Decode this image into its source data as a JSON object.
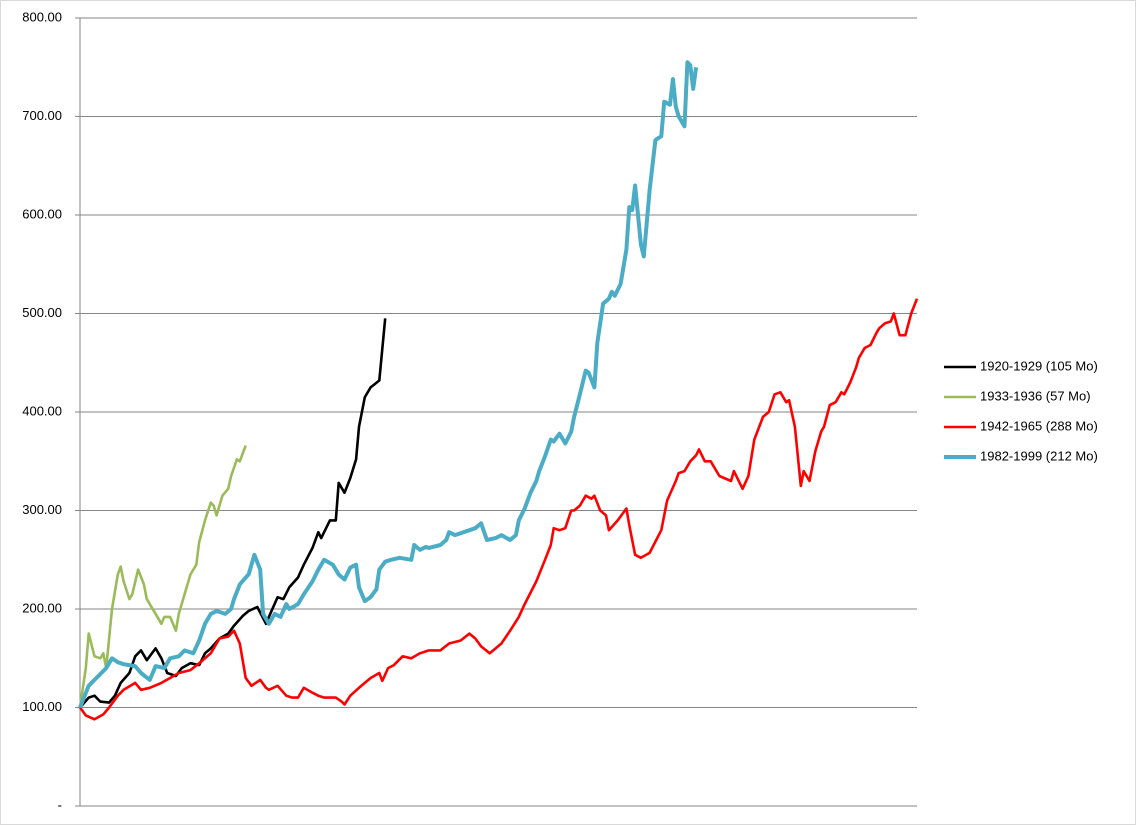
{
  "chart_data": {
    "type": "line",
    "xlim": [
      0,
      288
    ],
    "ylim": [
      0,
      800
    ],
    "yticks": [
      {
        "value": 0,
        "label": "-"
      },
      {
        "value": 100,
        "label": "100.00"
      },
      {
        "value": 200,
        "label": "200.00"
      },
      {
        "value": 300,
        "label": "300.00"
      },
      {
        "value": 400,
        "label": "400.00"
      },
      {
        "value": 500,
        "label": "500.00"
      },
      {
        "value": 600,
        "label": "600.00"
      },
      {
        "value": 700,
        "label": "700.00"
      },
      {
        "value": 800,
        "label": "800.00"
      }
    ],
    "grid": true,
    "legend": "right",
    "series": [
      {
        "name": "1920-1929 (105 Mo)",
        "color": "#000000",
        "x": [
          0,
          3,
          5,
          7,
          10,
          12,
          14,
          17,
          19,
          21,
          23,
          26,
          28,
          30,
          33,
          35,
          38,
          41,
          43,
          45,
          48,
          51,
          53,
          56,
          58,
          61,
          64,
          65,
          68,
          70,
          72,
          75,
          77,
          80,
          82,
          83,
          86,
          88,
          89,
          91,
          93,
          95,
          96,
          98,
          100,
          103,
          105
        ],
        "values": [
          100,
          110,
          112,
          106,
          105,
          112,
          125,
          135,
          152,
          158,
          148,
          160,
          150,
          135,
          132,
          140,
          145,
          143,
          155,
          160,
          170,
          175,
          183,
          193,
          198,
          202,
          185,
          192,
          212,
          210,
          222,
          232,
          245,
          262,
          278,
          272,
          290,
          290,
          328,
          318,
          333,
          352,
          385,
          415,
          425,
          432,
          495
        ]
      },
      {
        "name": "1933-1936 (57 Mo)",
        "color": "#9bbb59",
        "x": [
          0,
          2,
          3,
          5,
          7,
          8,
          9,
          11,
          13,
          14,
          15,
          17,
          18,
          20,
          22,
          23,
          26,
          28,
          29,
          31,
          33,
          34,
          36,
          38,
          40,
          41,
          43,
          45,
          46,
          47,
          49,
          51,
          52,
          54,
          55,
          57
        ],
        "values": [
          100,
          140,
          175,
          152,
          150,
          155,
          140,
          200,
          235,
          243,
          228,
          210,
          215,
          240,
          225,
          210,
          195,
          185,
          192,
          192,
          178,
          195,
          215,
          235,
          245,
          268,
          290,
          308,
          305,
          295,
          315,
          322,
          335,
          352,
          350,
          366
        ]
      },
      {
        "name": "1942-1965 (288 Mo)",
        "color": "#ff0000",
        "x": [
          0,
          2,
          5,
          8,
          10,
          13,
          15,
          19,
          21,
          24,
          28,
          31,
          34,
          38,
          41,
          45,
          48,
          51,
          53,
          55,
          57,
          59,
          62,
          64,
          65,
          68,
          71,
          73,
          75,
          77,
          80,
          82,
          84,
          88,
          90,
          91,
          93,
          96,
          100,
          103,
          104,
          106,
          108,
          111,
          114,
          117,
          120,
          124,
          127,
          131,
          134,
          136,
          138,
          141,
          145,
          148,
          151,
          153,
          157,
          160,
          162,
          163,
          165,
          167,
          169,
          170,
          172,
          174,
          176,
          177,
          179,
          181,
          182,
          185,
          188,
          189,
          191,
          193,
          196,
          200,
          202,
          205,
          206,
          208,
          210,
          212,
          213,
          215,
          217,
          220,
          224,
          225,
          228,
          230,
          232,
          235,
          237,
          239,
          241,
          243,
          244,
          246,
          248,
          249,
          251,
          253,
          255,
          256,
          258,
          260,
          262,
          263,
          265,
          267,
          268,
          270,
          272,
          274,
          275,
          277,
          279,
          280,
          282,
          284,
          286,
          288
        ],
        "values": [
          100,
          92,
          88,
          93,
          100,
          112,
          118,
          125,
          118,
          120,
          125,
          130,
          135,
          138,
          145,
          155,
          170,
          172,
          178,
          165,
          130,
          122,
          128,
          120,
          118,
          122,
          112,
          110,
          110,
          120,
          115,
          112,
          110,
          110,
          106,
          103,
          112,
          120,
          130,
          135,
          127,
          140,
          143,
          152,
          150,
          155,
          158,
          158,
          165,
          168,
          175,
          170,
          162,
          155,
          165,
          178,
          192,
          205,
          228,
          250,
          265,
          282,
          280,
          282,
          300,
          300,
          305,
          315,
          312,
          315,
          300,
          295,
          280,
          290,
          302,
          285,
          255,
          252,
          257,
          280,
          310,
          330,
          338,
          340,
          350,
          356,
          362,
          350,
          350,
          335,
          330,
          340,
          322,
          335,
          372,
          395,
          400,
          418,
          420,
          410,
          412,
          385,
          325,
          340,
          330,
          360,
          380,
          385,
          407,
          410,
          420,
          418,
          430,
          445,
          455,
          465,
          468,
          480,
          485,
          490,
          492,
          500,
          478,
          478,
          500,
          515
        ]
      },
      {
        "name": "1982-1999 (212 Mo)",
        "color": "#4bacc6",
        "x": [
          0,
          3,
          5,
          9,
          11,
          13,
          15,
          19,
          21,
          24,
          26,
          29,
          31,
          34,
          36,
          39,
          41,
          43,
          45,
          47,
          50,
          52,
          53,
          55,
          57,
          58,
          60,
          62,
          63,
          65,
          67,
          69,
          71,
          72,
          75,
          77,
          80,
          82,
          84,
          87,
          89,
          91,
          93,
          95,
          96,
          98,
          100,
          102,
          103,
          105,
          107,
          110,
          114,
          115,
          117,
          119,
          120,
          124,
          126,
          127,
          129,
          132,
          136,
          138,
          140,
          143,
          145,
          148,
          150,
          151,
          153,
          155,
          157,
          158,
          160,
          162,
          163,
          165,
          167,
          169,
          170,
          172,
          174,
          175,
          177,
          178,
          180,
          182,
          183,
          184,
          186,
          188,
          189,
          190,
          191,
          193,
          194,
          196,
          198,
          200,
          201,
          203,
          204,
          205,
          206,
          208,
          209,
          210,
          211,
          212
        ],
        "values": [
          100,
          122,
          128,
          140,
          150,
          146,
          144,
          142,
          135,
          128,
          142,
          140,
          150,
          152,
          158,
          155,
          168,
          185,
          195,
          198,
          195,
          200,
          210,
          225,
          232,
          235,
          255,
          240,
          195,
          185,
          195,
          192,
          205,
          200,
          205,
          215,
          228,
          240,
          250,
          245,
          235,
          230,
          242,
          245,
          222,
          208,
          212,
          220,
          240,
          248,
          250,
          252,
          250,
          265,
          260,
          263,
          262,
          265,
          270,
          278,
          275,
          278,
          282,
          287,
          270,
          272,
          275,
          270,
          275,
          290,
          302,
          318,
          330,
          340,
          355,
          372,
          370,
          378,
          368,
          380,
          395,
          418,
          442,
          440,
          425,
          470,
          510,
          515,
          522,
          518,
          530,
          565,
          608,
          605,
          630,
          570,
          558,
          625,
          676,
          680,
          715,
          712,
          738,
          710,
          700,
          690,
          755,
          752,
          728,
          750
        ]
      }
    ]
  }
}
